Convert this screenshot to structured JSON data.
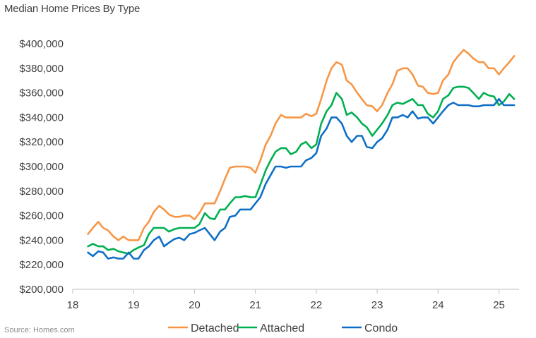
{
  "chart_data": {
    "type": "line",
    "title": "Median Home Prices By Type",
    "source": "Source: Homes.com",
    "xlabel": "",
    "ylabel": "",
    "xlim": [
      18,
      25.33
    ],
    "ylim": [
      200000,
      400000
    ],
    "x_ticks": [
      18,
      19,
      20,
      21,
      22,
      23,
      24,
      25
    ],
    "x_tick_labels": [
      "18",
      "19",
      "20",
      "21",
      "22",
      "23",
      "24",
      "25"
    ],
    "y_ticks": [
      200000,
      220000,
      240000,
      260000,
      280000,
      300000,
      320000,
      340000,
      360000,
      380000,
      400000
    ],
    "y_tick_labels": [
      "$200,000",
      "$220,000",
      "$240,000",
      "$260,000",
      "$280,000",
      "$300,000",
      "$320,000",
      "$340,000",
      "$360,000",
      "$380,000",
      "$400,000"
    ],
    "legend": {
      "placement": "bottom"
    },
    "grid": false,
    "series": [
      {
        "name": "Detached",
        "color": "#F79646",
        "points": [
          [
            18.25,
            245000
          ],
          [
            18.33,
            250000
          ],
          [
            18.42,
            255000
          ],
          [
            18.5,
            250000
          ],
          [
            18.58,
            248000
          ],
          [
            18.67,
            243000
          ],
          [
            18.75,
            240000
          ],
          [
            18.83,
            243000
          ],
          [
            18.92,
            240000
          ],
          [
            19.0,
            240000
          ],
          [
            19.08,
            240000
          ],
          [
            19.17,
            250000
          ],
          [
            19.25,
            255000
          ],
          [
            19.33,
            263000
          ],
          [
            19.42,
            268000
          ],
          [
            19.5,
            265000
          ],
          [
            19.58,
            261000
          ],
          [
            19.67,
            259000
          ],
          [
            19.75,
            259000
          ],
          [
            19.83,
            260000
          ],
          [
            19.92,
            260000
          ],
          [
            20.0,
            257000
          ],
          [
            20.08,
            262000
          ],
          [
            20.17,
            270000
          ],
          [
            20.25,
            270000
          ],
          [
            20.33,
            270000
          ],
          [
            20.42,
            280000
          ],
          [
            20.5,
            290000
          ],
          [
            20.58,
            299000
          ],
          [
            20.67,
            300000
          ],
          [
            20.75,
            300000
          ],
          [
            20.83,
            300000
          ],
          [
            20.92,
            299000
          ],
          [
            21.0,
            295000
          ],
          [
            21.08,
            305000
          ],
          [
            21.17,
            318000
          ],
          [
            21.25,
            325000
          ],
          [
            21.33,
            335000
          ],
          [
            21.42,
            342000
          ],
          [
            21.5,
            340000
          ],
          [
            21.58,
            340000
          ],
          [
            21.67,
            340000
          ],
          [
            21.75,
            340000
          ],
          [
            21.83,
            343000
          ],
          [
            21.92,
            341000
          ],
          [
            22.0,
            343000
          ],
          [
            22.08,
            355000
          ],
          [
            22.17,
            370000
          ],
          [
            22.25,
            380000
          ],
          [
            22.33,
            385000
          ],
          [
            22.42,
            383000
          ],
          [
            22.5,
            370000
          ],
          [
            22.58,
            367000
          ],
          [
            22.67,
            360000
          ],
          [
            22.75,
            355000
          ],
          [
            22.83,
            350000
          ],
          [
            22.92,
            349000
          ],
          [
            23.0,
            345000
          ],
          [
            23.08,
            350000
          ],
          [
            23.17,
            360000
          ],
          [
            23.25,
            367000
          ],
          [
            23.33,
            378000
          ],
          [
            23.42,
            380000
          ],
          [
            23.5,
            380000
          ],
          [
            23.58,
            375000
          ],
          [
            23.67,
            366000
          ],
          [
            23.75,
            365000
          ],
          [
            23.83,
            360000
          ],
          [
            23.92,
            359000
          ],
          [
            24.0,
            360000
          ],
          [
            24.08,
            370000
          ],
          [
            24.17,
            375000
          ],
          [
            24.25,
            385000
          ],
          [
            24.33,
            390000
          ],
          [
            24.42,
            395000
          ],
          [
            24.5,
            392000
          ],
          [
            24.58,
            388000
          ],
          [
            24.67,
            385000
          ],
          [
            24.75,
            385000
          ],
          [
            24.83,
            380000
          ],
          [
            24.92,
            380000
          ],
          [
            25.0,
            375000
          ],
          [
            25.08,
            380000
          ],
          [
            25.17,
            385000
          ],
          [
            25.25,
            390000
          ]
        ]
      },
      {
        "name": "Attached",
        "color": "#00B050",
        "points": [
          [
            18.25,
            235000
          ],
          [
            18.33,
            237000
          ],
          [
            18.42,
            235000
          ],
          [
            18.5,
            235000
          ],
          [
            18.58,
            232000
          ],
          [
            18.67,
            233000
          ],
          [
            18.75,
            231000
          ],
          [
            18.83,
            230000
          ],
          [
            18.92,
            229000
          ],
          [
            19.0,
            232000
          ],
          [
            19.08,
            234000
          ],
          [
            19.17,
            236000
          ],
          [
            19.25,
            245000
          ],
          [
            19.33,
            250000
          ],
          [
            19.42,
            250000
          ],
          [
            19.5,
            250000
          ],
          [
            19.58,
            247000
          ],
          [
            19.67,
            249000
          ],
          [
            19.75,
            250000
          ],
          [
            19.83,
            250000
          ],
          [
            19.92,
            250000
          ],
          [
            20.0,
            250000
          ],
          [
            20.08,
            253000
          ],
          [
            20.17,
            262000
          ],
          [
            20.25,
            258000
          ],
          [
            20.33,
            257000
          ],
          [
            20.42,
            265000
          ],
          [
            20.5,
            265000
          ],
          [
            20.58,
            270000
          ],
          [
            20.67,
            275000
          ],
          [
            20.75,
            275000
          ],
          [
            20.83,
            276000
          ],
          [
            20.92,
            275000
          ],
          [
            21.0,
            275000
          ],
          [
            21.08,
            285000
          ],
          [
            21.17,
            297000
          ],
          [
            21.25,
            305000
          ],
          [
            21.33,
            312000
          ],
          [
            21.42,
            315000
          ],
          [
            21.5,
            315000
          ],
          [
            21.58,
            310000
          ],
          [
            21.67,
            312000
          ],
          [
            21.75,
            318000
          ],
          [
            21.83,
            320000
          ],
          [
            21.92,
            315000
          ],
          [
            22.0,
            318000
          ],
          [
            22.08,
            335000
          ],
          [
            22.17,
            345000
          ],
          [
            22.25,
            350000
          ],
          [
            22.33,
            360000
          ],
          [
            22.42,
            355000
          ],
          [
            22.5,
            342000
          ],
          [
            22.58,
            344000
          ],
          [
            22.67,
            340000
          ],
          [
            22.75,
            335000
          ],
          [
            22.83,
            332000
          ],
          [
            22.92,
            325000
          ],
          [
            23.0,
            330000
          ],
          [
            23.08,
            335000
          ],
          [
            23.17,
            342000
          ],
          [
            23.25,
            350000
          ],
          [
            23.33,
            352000
          ],
          [
            23.42,
            351000
          ],
          [
            23.5,
            353000
          ],
          [
            23.58,
            355000
          ],
          [
            23.67,
            350000
          ],
          [
            23.75,
            350000
          ],
          [
            23.83,
            343000
          ],
          [
            23.92,
            340000
          ],
          [
            24.0,
            345000
          ],
          [
            24.08,
            355000
          ],
          [
            24.17,
            358000
          ],
          [
            24.25,
            364000
          ],
          [
            24.33,
            365000
          ],
          [
            24.42,
            365000
          ],
          [
            24.5,
            364000
          ],
          [
            24.58,
            360000
          ],
          [
            24.67,
            355000
          ],
          [
            24.75,
            360000
          ],
          [
            24.83,
            358000
          ],
          [
            24.92,
            357000
          ],
          [
            25.0,
            350000
          ],
          [
            25.08,
            353000
          ],
          [
            25.17,
            359000
          ],
          [
            25.25,
            355000
          ]
        ]
      },
      {
        "name": "Condo",
        "color": "#0F6FC6",
        "points": [
          [
            18.25,
            230000
          ],
          [
            18.33,
            227000
          ],
          [
            18.42,
            231000
          ],
          [
            18.5,
            230000
          ],
          [
            18.58,
            225000
          ],
          [
            18.67,
            226000
          ],
          [
            18.75,
            225000
          ],
          [
            18.83,
            225000
          ],
          [
            18.92,
            230000
          ],
          [
            19.0,
            225000
          ],
          [
            19.08,
            225000
          ],
          [
            19.17,
            232000
          ],
          [
            19.25,
            235000
          ],
          [
            19.33,
            240000
          ],
          [
            19.42,
            243000
          ],
          [
            19.5,
            235000
          ],
          [
            19.58,
            238000
          ],
          [
            19.67,
            241000
          ],
          [
            19.75,
            242000
          ],
          [
            19.83,
            240000
          ],
          [
            19.92,
            245000
          ],
          [
            20.0,
            246000
          ],
          [
            20.08,
            248000
          ],
          [
            20.17,
            250000
          ],
          [
            20.25,
            245000
          ],
          [
            20.33,
            240000
          ],
          [
            20.42,
            247000
          ],
          [
            20.5,
            250000
          ],
          [
            20.58,
            259000
          ],
          [
            20.67,
            260000
          ],
          [
            20.75,
            265000
          ],
          [
            20.83,
            265000
          ],
          [
            20.92,
            265000
          ],
          [
            21.0,
            270000
          ],
          [
            21.08,
            275000
          ],
          [
            21.17,
            286000
          ],
          [
            21.25,
            293000
          ],
          [
            21.33,
            300000
          ],
          [
            21.42,
            300000
          ],
          [
            21.5,
            299000
          ],
          [
            21.58,
            300000
          ],
          [
            21.67,
            300000
          ],
          [
            21.75,
            300000
          ],
          [
            21.83,
            305000
          ],
          [
            21.92,
            307000
          ],
          [
            22.0,
            311000
          ],
          [
            22.08,
            325000
          ],
          [
            22.17,
            331000
          ],
          [
            22.25,
            340000
          ],
          [
            22.33,
            340000
          ],
          [
            22.42,
            335000
          ],
          [
            22.5,
            325000
          ],
          [
            22.58,
            320000
          ],
          [
            22.67,
            325000
          ],
          [
            22.75,
            325000
          ],
          [
            22.83,
            316000
          ],
          [
            22.92,
            315000
          ],
          [
            23.0,
            320000
          ],
          [
            23.08,
            323000
          ],
          [
            23.17,
            330000
          ],
          [
            23.25,
            340000
          ],
          [
            23.33,
            340000
          ],
          [
            23.42,
            342000
          ],
          [
            23.5,
            340000
          ],
          [
            23.58,
            345000
          ],
          [
            23.67,
            339000
          ],
          [
            23.75,
            340000
          ],
          [
            23.83,
            340000
          ],
          [
            23.92,
            335000
          ],
          [
            24.0,
            340000
          ],
          [
            24.08,
            345000
          ],
          [
            24.17,
            350000
          ],
          [
            24.25,
            352000
          ],
          [
            24.33,
            350000
          ],
          [
            24.42,
            350000
          ],
          [
            24.5,
            350000
          ],
          [
            24.58,
            349000
          ],
          [
            24.67,
            349000
          ],
          [
            24.75,
            350000
          ],
          [
            24.83,
            350000
          ],
          [
            24.92,
            350000
          ],
          [
            25.0,
            355000
          ],
          [
            25.08,
            350000
          ],
          [
            25.17,
            350000
          ],
          [
            25.25,
            350000
          ]
        ]
      }
    ]
  }
}
